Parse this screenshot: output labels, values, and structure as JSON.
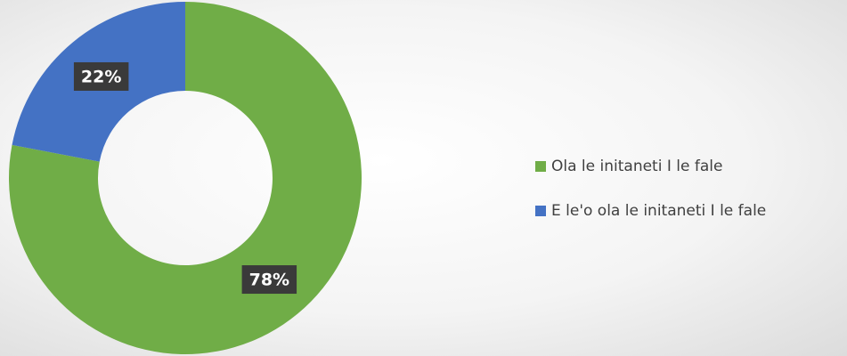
{
  "chart_data": {
    "type": "donut",
    "categories": [
      "Ola le initaneti I le fale",
      "E le'o ola le initaneti I le fale"
    ],
    "values": [
      78,
      22
    ],
    "value_labels": [
      "78%",
      "22%"
    ],
    "colors": [
      "#70ad47",
      "#4472c4"
    ],
    "legend": "right"
  }
}
